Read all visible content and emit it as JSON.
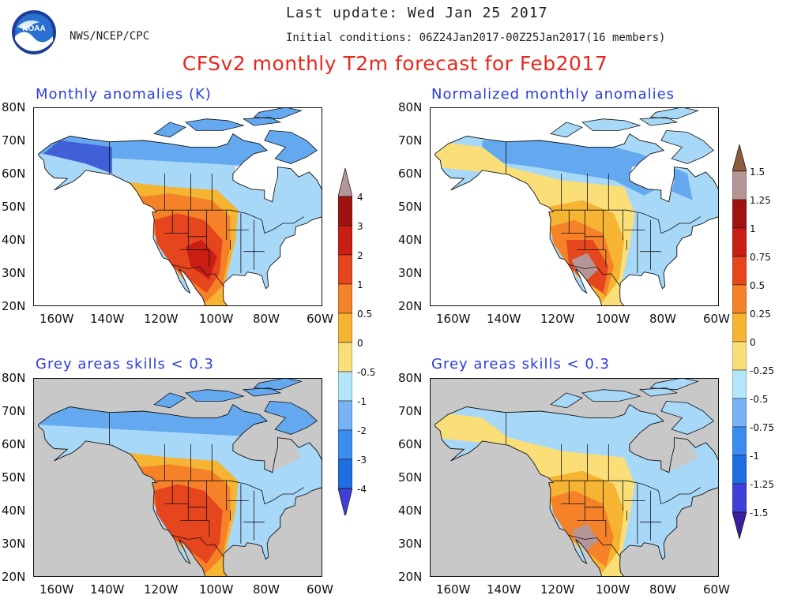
{
  "header": {
    "last_update": "Last update: Wed Jan 25 2017",
    "agency": "NWS/NCEP/CPC",
    "initial_conditions": "Initial conditions: 06Z24Jan2017-00Z25Jan2017(16 members)",
    "title": "CFSv2 monthly T2m forecast for Feb2017",
    "logo_text": "NOAA"
  },
  "panels": {
    "tl": {
      "title": "Monthly anomalies (K)"
    },
    "tr": {
      "title": "Normalized monthly anomalies"
    },
    "bl": {
      "title": "Grey areas skills < 0.3"
    },
    "br": {
      "title": "Grey areas skills < 0.3"
    }
  },
  "axes": {
    "lat_labels": [
      "80N",
      "70N",
      "60N",
      "50N",
      "40N",
      "30N",
      "20N"
    ],
    "lon_labels": [
      "160W",
      "140W",
      "120W",
      "100W",
      "80W",
      "60W"
    ]
  },
  "colorbars": {
    "anomaly_labels": [
      "4",
      "3",
      "2",
      "1",
      "0.5",
      "0",
      "-0.5",
      "-1",
      "-2",
      "-3",
      "-4"
    ],
    "normalized_labels": [
      "1.5",
      "1.25",
      "1",
      "0.75",
      "0.5",
      "0.25",
      "0",
      "-0.25",
      "-0.5",
      "-0.75",
      "-1",
      "-1.25",
      "-1.5"
    ],
    "colors": [
      "#3a1ea0",
      "#4040d8",
      "#1e6ee0",
      "#3c8cf0",
      "#78b4f5",
      "#b4e6fa",
      "#fade78",
      "#f5b432",
      "#f58228",
      "#e6461e",
      "#c81e14",
      "#a0140f",
      "#b49696",
      "#8c5a3c"
    ]
  },
  "map_colors": {
    "land_default": "#a8d8f8",
    "grey": "#c8c8c8",
    "north_cold": "#64a8f0",
    "deep_cold": "#4060d8",
    "warm_light": "#f5b432",
    "warm": "#f58228",
    "hot": "#e6461e",
    "very_hot": "#c81e14",
    "extreme": "#b49696",
    "pale_yellow": "#fade78"
  }
}
